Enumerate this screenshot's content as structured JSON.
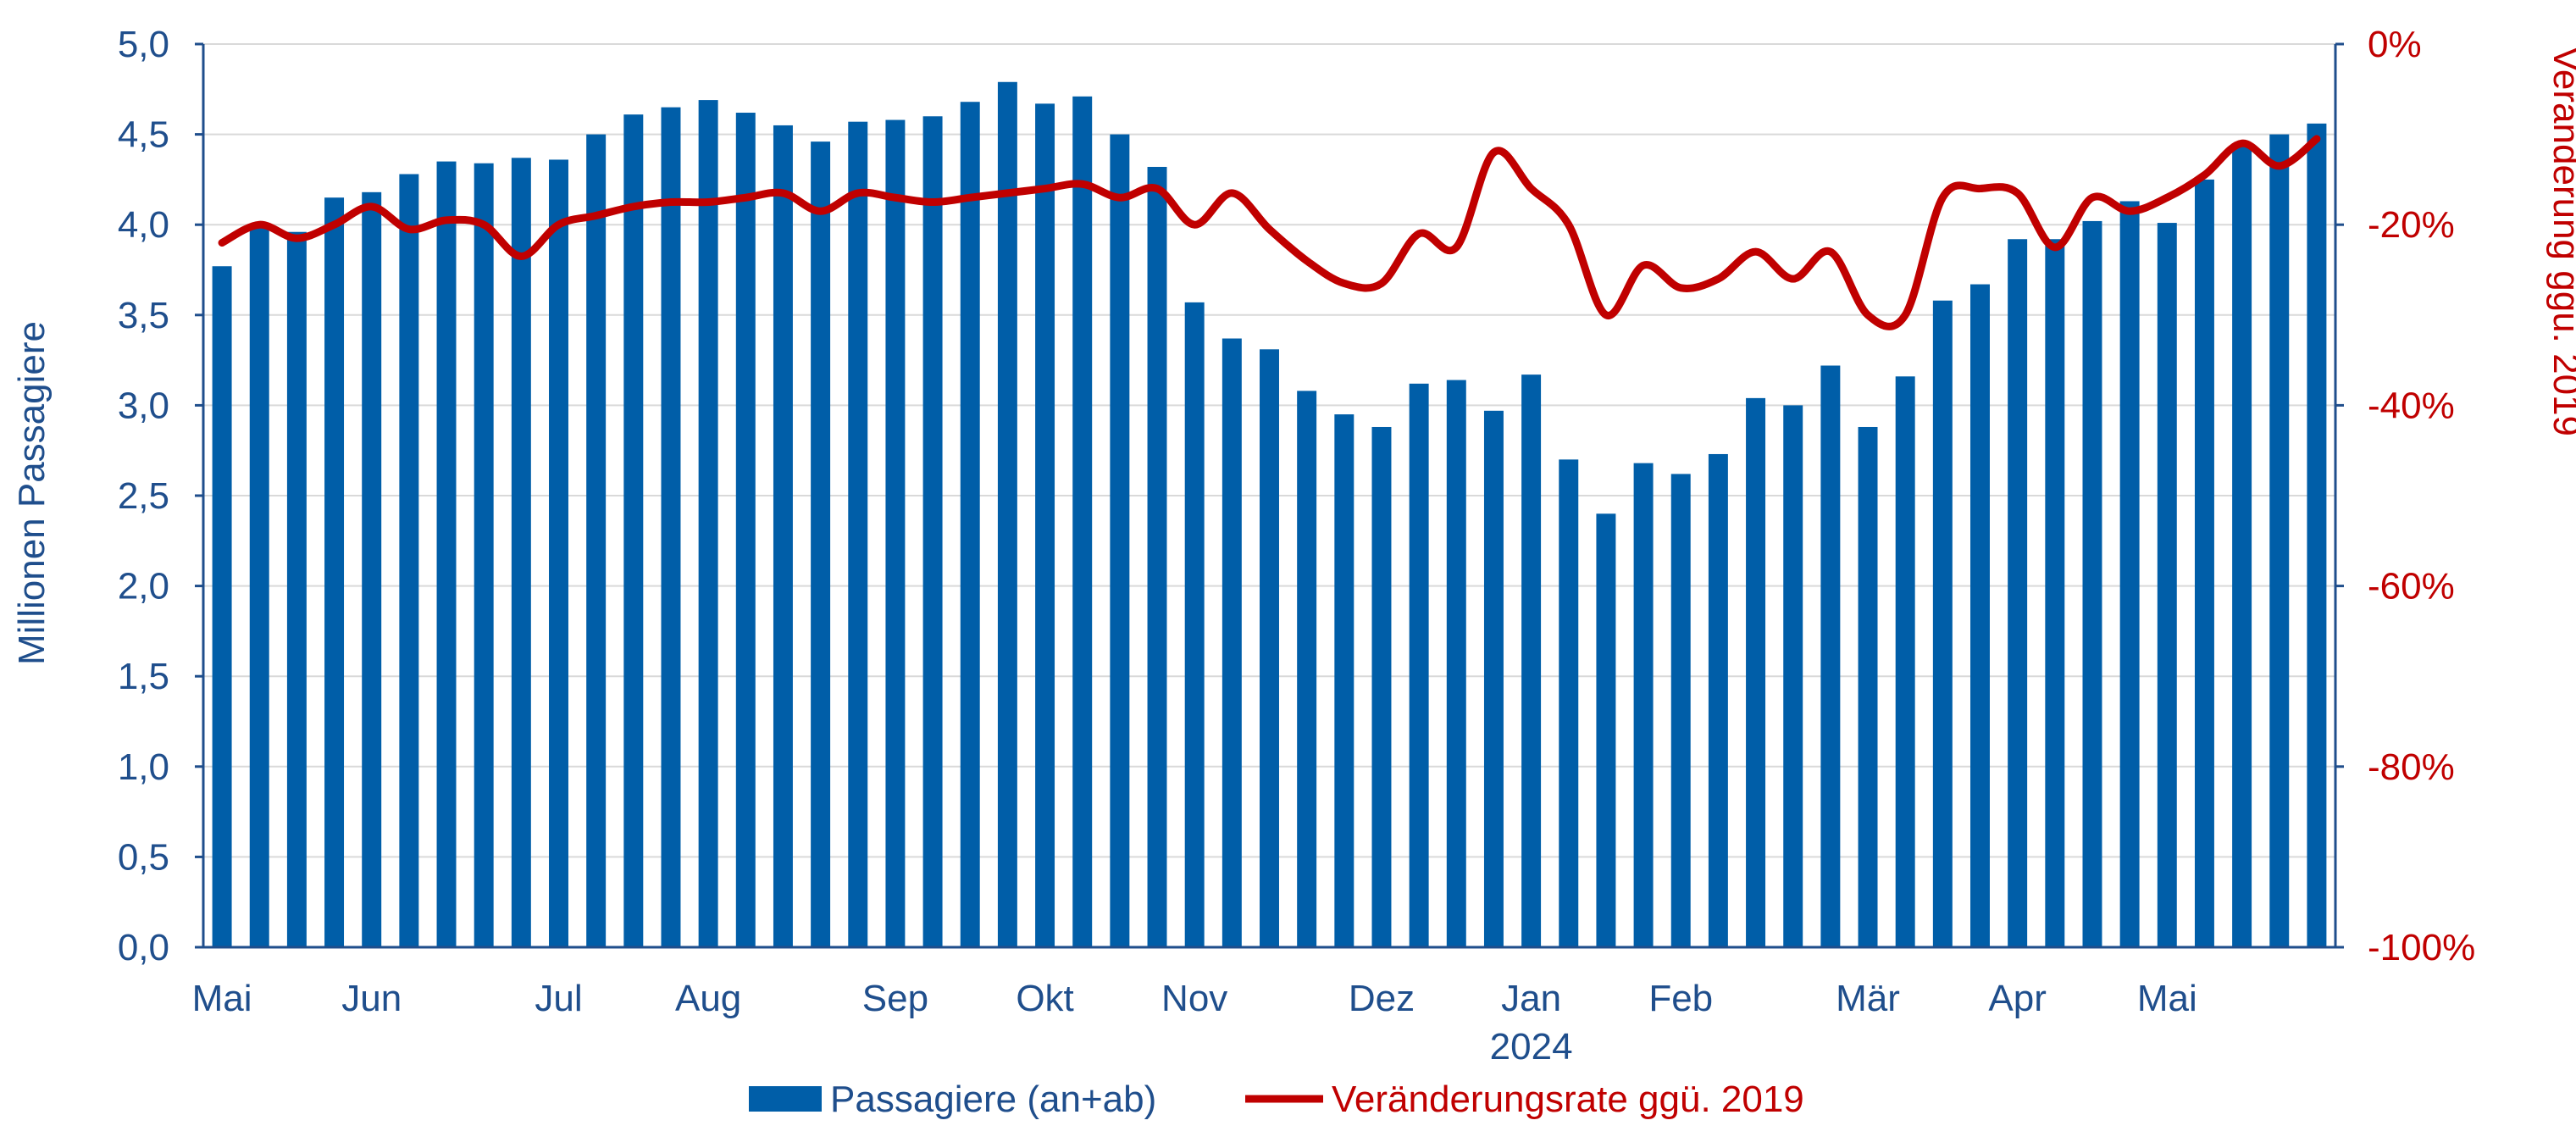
{
  "chart_data": {
    "type": "bar+line",
    "title": "",
    "ylabel_left": "Millionen Passagiere",
    "ylabel_right": "Veränderung ggü. 2019",
    "ylim_left": [
      0,
      5
    ],
    "ylim_right": [
      -100,
      0
    ],
    "yticks_left": [
      "0,0",
      "0,5",
      "1,0",
      "1,5",
      "2,0",
      "2,5",
      "3,0",
      "3,5",
      "4,0",
      "4,5",
      "5,0"
    ],
    "yticks_right": [
      "-100%",
      "-80%",
      "-60%",
      "-40%",
      "-20%",
      "0%"
    ],
    "x_month_labels": [
      {
        "label": "Mai",
        "index": 0
      },
      {
        "label": "Jun",
        "index": 4
      },
      {
        "label": "Jul",
        "index": 9
      },
      {
        "label": "Aug",
        "index": 13
      },
      {
        "label": "Sep",
        "index": 18
      },
      {
        "label": "Okt",
        "index": 22
      },
      {
        "label": "Nov",
        "index": 26
      },
      {
        "label": "Dez",
        "index": 31
      },
      {
        "label": "Jan",
        "index": 35
      },
      {
        "label": "Feb",
        "index": 39
      },
      {
        "label": "Mär",
        "index": 44
      },
      {
        "label": "Apr",
        "index": 48
      },
      {
        "label": "Mai",
        "index": 52
      }
    ],
    "year_label": {
      "label": "2024",
      "index": 35
    },
    "grid": true,
    "legend_position": "bottom-center",
    "series": [
      {
        "name": "Passagiere (an+ab)",
        "type": "bar",
        "axis": "left",
        "color": "#005ea8",
        "values": [
          3.77,
          4.0,
          3.96,
          4.15,
          4.18,
          4.28,
          4.35,
          4.34,
          4.37,
          4.36,
          4.5,
          4.61,
          4.65,
          4.69,
          4.62,
          4.55,
          4.46,
          4.57,
          4.58,
          4.6,
          4.68,
          4.79,
          4.67,
          4.71,
          4.5,
          4.32,
          3.57,
          3.37,
          3.31,
          3.08,
          2.95,
          2.88,
          3.12,
          3.14,
          2.97,
          3.17,
          2.7,
          2.4,
          2.68,
          2.62,
          2.73,
          3.04,
          3.0,
          3.22,
          2.88,
          3.16,
          3.58,
          3.67,
          3.92,
          3.92,
          4.02,
          4.13,
          4.01,
          4.25,
          4.45,
          4.5,
          4.56
        ]
      },
      {
        "name": "Veränderungsrate ggü. 2019",
        "type": "line",
        "axis": "right",
        "color": "#c00000",
        "values": [
          -22,
          -20,
          -21.5,
          -20,
          -18,
          -20.5,
          -19.5,
          -20,
          -23.5,
          -20,
          -19,
          -18,
          -17.5,
          -17.5,
          -17,
          -16.5,
          -18.5,
          -16.5,
          -17,
          -17.5,
          -17,
          -16.5,
          -16,
          -15.5,
          -17,
          -16,
          -20,
          -16.5,
          -20.5,
          -24,
          -26.5,
          -26.5,
          -21,
          -22.5,
          -12,
          -16,
          -20,
          -30,
          -24.5,
          -27,
          -26,
          -23,
          -26,
          -23,
          -30,
          -30,
          -17,
          -16,
          -16.5,
          -22.5,
          -17,
          -18.5,
          -17,
          -14.5,
          -11,
          -13.5,
          -10.5
        ]
      }
    ]
  }
}
